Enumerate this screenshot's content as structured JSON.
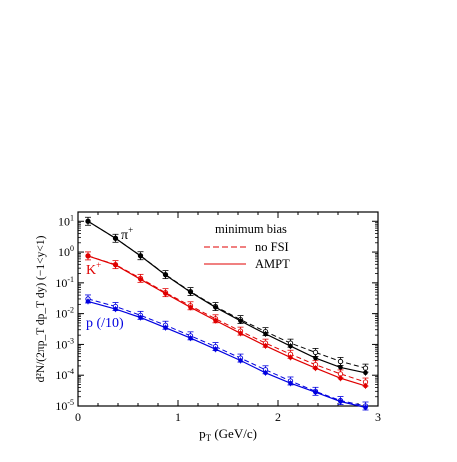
{
  "chart_data": {
    "type": "line",
    "log_y": true,
    "xlim": [
      0,
      3
    ],
    "ylim": [
      1e-05,
      20
    ],
    "x_ticks": [
      "0",
      "1",
      "2",
      "3"
    ],
    "y_ticks": [
      {
        "base": "10",
        "exp": "1"
      },
      {
        "base": "10",
        "exp": "0"
      },
      {
        "base": "10",
        "exp": "-1"
      },
      {
        "base": "10",
        "exp": "-2"
      },
      {
        "base": "10",
        "exp": "-3"
      },
      {
        "base": "10",
        "exp": "-4"
      },
      {
        "base": "10",
        "exp": "-5"
      }
    ],
    "xlabel": {
      "main": "p",
      "sub": "T",
      "rest": " (GeV/c)"
    },
    "ylabel": "d²N/(2πp_T dp_T dy) (−1<y<1)",
    "legend": {
      "title": "minimum bias",
      "placement": "top-right",
      "entries": [
        {
          "label": "no FSI",
          "style": "dashed"
        },
        {
          "label": "AMPT",
          "style": "solid"
        }
      ]
    },
    "colors": {
      "pi": "#000000",
      "K": "#e00000",
      "p": "#0000e0"
    },
    "series": [
      {
        "name": "π+",
        "label": {
          "main": "π",
          "sup": "+"
        },
        "color": "#000000",
        "x": [
          0.1,
          0.375,
          0.625,
          0.875,
          1.125,
          1.375,
          1.625,
          1.875,
          2.125,
          2.375,
          2.625,
          2.875
        ],
        "ampt": [
          10,
          2.8,
          0.75,
          0.18,
          0.05,
          0.016,
          0.0058,
          0.0022,
          0.00088,
          0.00036,
          0.00018,
          0.00012
        ],
        "nofsi": [
          10,
          2.8,
          0.76,
          0.185,
          0.052,
          0.017,
          0.0064,
          0.0026,
          0.0011,
          0.00055,
          0.00028,
          0.00017
        ]
      },
      {
        "name": "K+",
        "label": {
          "main": "K",
          "sup": "+"
        },
        "color": "#e00000",
        "x": [
          0.1,
          0.375,
          0.625,
          0.875,
          1.125,
          1.375,
          1.625,
          1.875,
          2.125,
          2.375,
          2.625,
          2.875
        ],
        "ampt": [
          0.75,
          0.38,
          0.13,
          0.045,
          0.016,
          0.006,
          0.0023,
          0.0009,
          0.00038,
          0.00017,
          8e-05,
          4.5e-05
        ],
        "nofsi": [
          0.75,
          0.39,
          0.14,
          0.048,
          0.018,
          0.0068,
          0.0027,
          0.0011,
          0.00048,
          0.00022,
          0.00011,
          6e-05
        ]
      },
      {
        "name": "p (/10)",
        "label": {
          "main": "p (/10)",
          "sup": ""
        },
        "color": "#0000e0",
        "x": [
          0.1,
          0.375,
          0.625,
          0.875,
          1.125,
          1.375,
          1.625,
          1.875,
          2.125,
          2.375,
          2.625,
          2.875
        ],
        "ampt": [
          0.025,
          0.014,
          0.0075,
          0.0035,
          0.0016,
          0.0007,
          0.0003,
          0.00012,
          5.5e-05,
          2.8e-05,
          1.4e-05,
          9e-06
        ],
        "nofsi": [
          0.03,
          0.017,
          0.0088,
          0.0042,
          0.0019,
          0.00085,
          0.00036,
          0.00015,
          6.5e-05,
          3e-05,
          1.5e-05,
          1e-05
        ]
      }
    ]
  }
}
